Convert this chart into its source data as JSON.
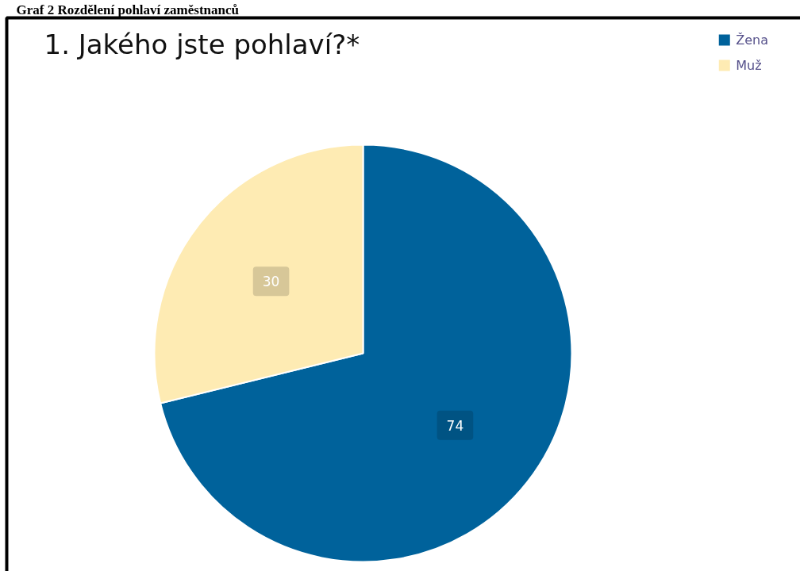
{
  "chart_data": {
    "type": "pie",
    "title": "1. Jakého jste pohlaví?*",
    "annotations": [
      "Graf 2 Rozdělení pohlaví zaměstnanců"
    ],
    "categories": [
      "Žena",
      "Muž"
    ],
    "values": [
      74,
      30
    ],
    "colors": [
      "#00629b",
      "#feebb3"
    ],
    "data_labels": true,
    "legend": "top right"
  }
}
